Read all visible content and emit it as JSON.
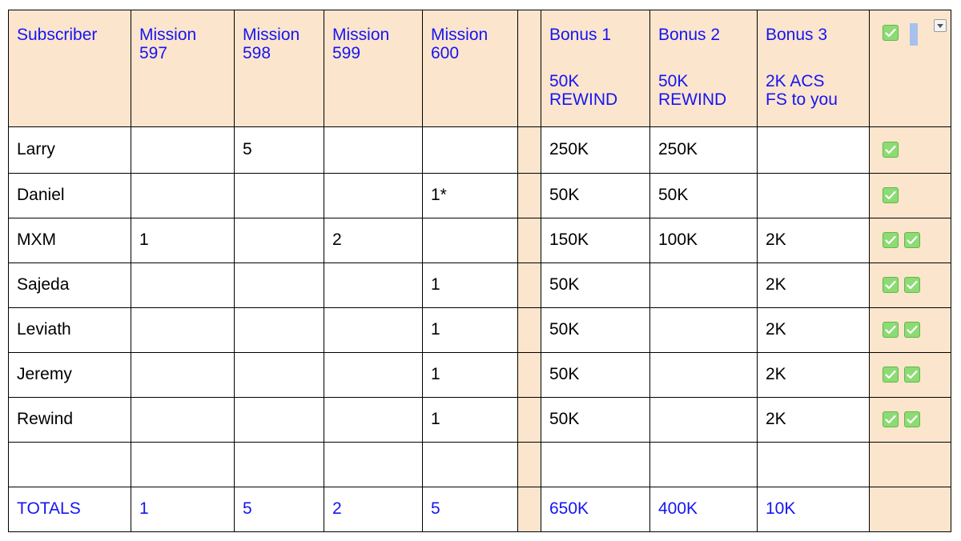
{
  "columns": [
    {
      "key": "subscriber",
      "label": "Subscriber"
    },
    {
      "key": "m597",
      "label": "Mission\n597"
    },
    {
      "key": "m598",
      "label": "Mission\n598"
    },
    {
      "key": "m599",
      "label": "Mission\n599"
    },
    {
      "key": "m600",
      "label": "Mission\n600"
    },
    {
      "key": "spacer",
      "label": ""
    },
    {
      "key": "bonus1",
      "label": "Bonus 1",
      "sub": "50K\nREWIND"
    },
    {
      "key": "bonus2",
      "label": "Bonus 2",
      "sub": "50K\nREWIND"
    },
    {
      "key": "bonus3",
      "label": "Bonus 3",
      "sub": "2K ACS\nFS to you"
    },
    {
      "key": "check",
      "label": ""
    }
  ],
  "rows": [
    {
      "subscriber": "Larry",
      "m597": "",
      "m598": "5",
      "m599": "",
      "m600": "",
      "bonus1": "250K",
      "bonus2": "250K",
      "bonus3": "",
      "checks": 1
    },
    {
      "subscriber": "Daniel",
      "m597": "",
      "m598": "",
      "m599": "",
      "m600": "1*",
      "bonus1": "50K",
      "bonus2": "50K",
      "bonus3": "",
      "checks": 1
    },
    {
      "subscriber": "MXM",
      "m597": "1",
      "m598": "",
      "m599": "2",
      "m600": "",
      "bonus1": "150K",
      "bonus2": "100K",
      "bonus3": "2K",
      "checks": 2
    },
    {
      "subscriber": "Sajeda",
      "m597": "",
      "m598": "",
      "m599": "",
      "m600": "1",
      "bonus1": "50K",
      "bonus2": "",
      "bonus3": "2K",
      "checks": 2
    },
    {
      "subscriber": "Leviath",
      "m597": "",
      "m598": "",
      "m599": "",
      "m600": "1",
      "bonus1": "50K",
      "bonus2": "",
      "bonus3": "2K",
      "checks": 2
    },
    {
      "subscriber": "Jeremy",
      "m597": "",
      "m598": "",
      "m599": "",
      "m600": "1",
      "bonus1": "50K",
      "bonus2": "",
      "bonus3": "2K",
      "checks": 2
    },
    {
      "subscriber": "Rewind",
      "m597": "",
      "m598": "",
      "m599": "",
      "m600": "1",
      "bonus1": "50K",
      "bonus2": "",
      "bonus3": "2K",
      "checks": 2
    },
    {
      "subscriber": "",
      "m597": "",
      "m598": "",
      "m599": "",
      "m600": "",
      "bonus1": "",
      "bonus2": "",
      "bonus3": "",
      "checks": 0
    }
  ],
  "totals": {
    "subscriber": "TOTALS",
    "m597": "1",
    "m598": "5",
    "m599": "2",
    "m600": "5",
    "bonus1": "650K",
    "bonus2": "400K",
    "bonus3": "10K"
  },
  "header_check": {
    "checked": true,
    "has_dropdown": true
  },
  "colors": {
    "header_text": "#1515f2",
    "header_fill": "#fce5cd",
    "checkbox_green": "#8ddb74",
    "grid": "#000000"
  }
}
